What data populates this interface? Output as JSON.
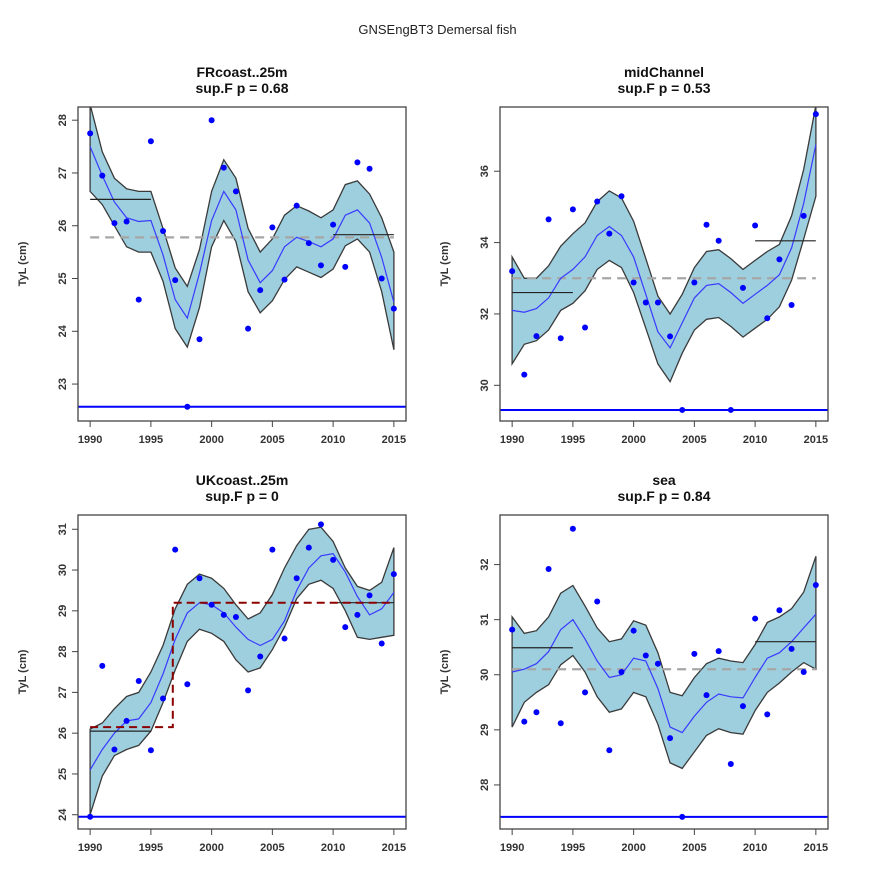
{
  "figure": {
    "suptitle": "GNSEngBT3 Demersal fish"
  },
  "colors": {
    "band_fill": "#9ecfdf",
    "band_edge": "#3a3a3a",
    "fit_line": "#3a3aff",
    "points": "#0000ff",
    "min_line": "#0000ff",
    "overall_mean": "#a6a6a6",
    "segment_mean": "#222222",
    "breakpoint_fit": "#8b0000"
  },
  "chart_data": [
    {
      "type": "scatter",
      "id": "frcoast",
      "title": "FRcoast..25m",
      "subtitle": "sup.F p = 0.68",
      "xlabel": "",
      "ylabel": "TyL (cm)",
      "xlim": [
        1989,
        2016
      ],
      "ylim": [
        22.3,
        28.25
      ],
      "xticks": [
        1990,
        1995,
        2000,
        2005,
        2010,
        2015
      ],
      "yticks": [
        23,
        24,
        25,
        26,
        27,
        28
      ],
      "x": [
        1990,
        1991,
        1992,
        1993,
        1994,
        1995,
        1996,
        1997,
        1998,
        1999,
        2000,
        2001,
        2002,
        2003,
        2004,
        2005,
        2006,
        2007,
        2008,
        2009,
        2010,
        2011,
        2012,
        2013,
        2014,
        2015
      ],
      "points": [
        27.75,
        26.95,
        26.05,
        26.08,
        24.6,
        27.6,
        25.9,
        24.97,
        22.57,
        23.85,
        28.0,
        27.1,
        26.65,
        24.05,
        24.78,
        25.97,
        24.98,
        26.38,
        25.67,
        25.25,
        26.02,
        25.22,
        27.2,
        27.08,
        25.0,
        24.43
      ],
      "fit": [
        27.5,
        26.95,
        26.45,
        26.15,
        26.08,
        26.1,
        25.45,
        24.6,
        24.25,
        25.1,
        26.1,
        26.65,
        26.3,
        25.35,
        24.92,
        25.15,
        25.6,
        25.78,
        25.7,
        25.6,
        25.75,
        26.2,
        26.3,
        26.05,
        25.4,
        24.55
      ],
      "upper": [
        28.3,
        27.4,
        26.9,
        26.7,
        26.65,
        26.65,
        25.95,
        25.2,
        24.85,
        25.55,
        26.65,
        27.25,
        26.9,
        25.95,
        25.5,
        25.75,
        26.2,
        26.38,
        26.28,
        26.15,
        26.3,
        26.78,
        26.85,
        26.6,
        26.15,
        25.5
      ],
      "lower": [
        26.65,
        26.4,
        26.0,
        25.6,
        25.5,
        25.5,
        24.95,
        24.05,
        23.7,
        24.45,
        25.6,
        26.1,
        25.7,
        24.75,
        24.35,
        24.58,
        24.98,
        25.22,
        25.12,
        25.02,
        25.18,
        25.62,
        25.75,
        25.5,
        24.75,
        23.65
      ],
      "overall_mean": 25.78,
      "min_value": 22.57,
      "segment_means": [
        {
          "from": 1990,
          "to": 1995,
          "value": 26.5
        },
        {
          "from": 2010,
          "to": 2015,
          "value": 25.83
        }
      ],
      "breakpoint_fit": []
    },
    {
      "type": "scatter",
      "id": "midchannel",
      "title": "midChannel",
      "subtitle": "sup.F p = 0.53",
      "xlabel": "",
      "ylabel": "TyL (cm)",
      "xlim": [
        1989,
        2016
      ],
      "ylim": [
        29.0,
        37.8
      ],
      "xticks": [
        1990,
        1995,
        2000,
        2005,
        2010,
        2015
      ],
      "yticks": [
        30,
        32,
        34,
        36
      ],
      "x": [
        1990,
        1991,
        1992,
        1993,
        1994,
        1995,
        1996,
        1997,
        1998,
        1999,
        2000,
        2001,
        2002,
        2003,
        2004,
        2005,
        2006,
        2007,
        2008,
        2009,
        2010,
        2011,
        2012,
        2013,
        2014,
        2015
      ],
      "points": [
        33.2,
        30.3,
        31.38,
        34.65,
        31.32,
        34.93,
        31.62,
        35.15,
        34.25,
        35.3,
        32.88,
        32.32,
        32.32,
        31.37,
        29.31,
        32.88,
        34.5,
        34.05,
        29.31,
        32.73,
        34.48,
        31.88,
        33.53,
        32.25,
        34.75,
        37.6
      ],
      "fit": [
        32.1,
        32.05,
        32.15,
        32.45,
        33.0,
        33.25,
        33.6,
        34.2,
        34.45,
        34.2,
        33.6,
        32.55,
        31.5,
        31.05,
        31.75,
        32.45,
        32.8,
        32.85,
        32.6,
        32.3,
        32.55,
        32.8,
        33.1,
        33.85,
        35.1,
        36.75
      ],
      "upper": [
        33.6,
        33.0,
        33.0,
        33.35,
        33.9,
        34.25,
        34.55,
        35.15,
        35.45,
        35.25,
        34.6,
        33.55,
        32.5,
        32.0,
        32.55,
        33.3,
        33.75,
        33.8,
        33.55,
        33.25,
        33.5,
        33.75,
        33.95,
        34.75,
        36.05,
        37.85
      ],
      "lower": [
        30.6,
        31.15,
        31.25,
        31.55,
        32.1,
        32.3,
        32.65,
        33.25,
        33.5,
        33.3,
        32.6,
        31.6,
        30.6,
        30.1,
        30.9,
        31.55,
        31.85,
        31.9,
        31.65,
        31.35,
        31.6,
        31.85,
        32.2,
        32.95,
        34.1,
        35.3
      ],
      "overall_mean": 33.0,
      "min_value": 29.31,
      "segment_means": [
        {
          "from": 1990,
          "to": 1995,
          "value": 32.6
        },
        {
          "from": 2010,
          "to": 2015,
          "value": 34.05
        }
      ],
      "breakpoint_fit": []
    },
    {
      "type": "scatter",
      "id": "ukcoast",
      "title": "UKcoast..25m",
      "subtitle": "sup.F p = 0",
      "xlabel": "",
      "ylabel": "TyL (cm)",
      "xlim": [
        1989,
        2016
      ],
      "ylim": [
        23.65,
        31.35
      ],
      "xticks": [
        1990,
        1995,
        2000,
        2005,
        2010,
        2015
      ],
      "yticks": [
        24,
        25,
        26,
        27,
        28,
        29,
        30,
        31
      ],
      "x": [
        1990,
        1991,
        1992,
        1993,
        1994,
        1995,
        1996,
        1997,
        1998,
        1999,
        2000,
        2001,
        2002,
        2003,
        2004,
        2005,
        2006,
        2007,
        2008,
        2009,
        2010,
        2011,
        2012,
        2013,
        2014,
        2015
      ],
      "points": [
        23.95,
        27.65,
        25.6,
        26.3,
        27.28,
        25.58,
        26.85,
        30.5,
        27.2,
        29.8,
        29.15,
        28.9,
        28.85,
        27.05,
        27.88,
        30.5,
        28.32,
        29.8,
        30.55,
        31.12,
        30.25,
        28.6,
        28.9,
        29.38,
        28.2,
        29.9
      ],
      "fit": [
        25.1,
        25.6,
        26.0,
        26.3,
        26.35,
        26.75,
        27.45,
        28.3,
        28.95,
        29.2,
        29.15,
        28.95,
        28.6,
        28.3,
        28.15,
        28.3,
        28.75,
        29.5,
        30.05,
        30.35,
        30.4,
        29.95,
        29.35,
        28.9,
        29.05,
        29.45
      ],
      "upper": [
        26.1,
        26.25,
        26.6,
        26.9,
        27.0,
        27.5,
        28.15,
        29.05,
        29.65,
        29.9,
        29.8,
        29.55,
        29.15,
        28.8,
        28.95,
        29.4,
        30.05,
        30.6,
        31.0,
        31.05,
        30.7,
        30.05,
        29.6,
        29.5,
        29.7,
        30.55
      ],
      "lower": [
        24.0,
        24.95,
        25.45,
        25.6,
        25.7,
        26.05,
        26.75,
        27.55,
        28.25,
        28.55,
        28.45,
        28.25,
        27.8,
        27.5,
        27.6,
        28.05,
        28.6,
        29.3,
        29.65,
        29.75,
        29.55,
        29.0,
        28.35,
        28.3,
        28.35,
        28.4
      ],
      "overall_mean": null,
      "min_value": 23.95,
      "segment_means": [
        {
          "from": 1990,
          "to": 1995,
          "value": 26.05
        },
        {
          "from": 2010,
          "to": 2015,
          "value": 29.2
        }
      ],
      "breakpoint_fit": [
        {
          "x": 1990,
          "y": 26.15
        },
        {
          "x": 1996.8,
          "y": 26.15
        },
        {
          "x": 1996.8,
          "y": 29.2
        },
        {
          "x": 2015,
          "y": 29.2
        }
      ]
    },
    {
      "type": "scatter",
      "id": "sea",
      "title": "sea",
      "subtitle": "sup.F p = 0.84",
      "xlabel": "",
      "ylabel": "TyL (cm)",
      "xlim": [
        1989,
        2016
      ],
      "ylim": [
        27.2,
        32.9
      ],
      "xticks": [
        1990,
        1995,
        2000,
        2005,
        2010,
        2015
      ],
      "yticks": [
        28,
        29,
        30,
        31,
        32
      ],
      "x": [
        1990,
        1991,
        1992,
        1993,
        1994,
        1995,
        1996,
        1997,
        1998,
        1999,
        2000,
        2001,
        2002,
        2003,
        2004,
        2005,
        2006,
        2007,
        2008,
        2009,
        2010,
        2011,
        2012,
        2013,
        2014,
        2015
      ],
      "points": [
        30.82,
        29.15,
        29.32,
        31.92,
        29.12,
        32.65,
        29.68,
        31.33,
        28.63,
        30.05,
        30.8,
        30.35,
        30.2,
        28.85,
        27.42,
        30.38,
        29.63,
        30.43,
        28.38,
        29.43,
        31.02,
        29.28,
        31.17,
        30.47,
        30.05,
        31.63
      ],
      "fit": [
        30.05,
        30.1,
        30.2,
        30.42,
        30.82,
        31.0,
        30.65,
        30.25,
        29.95,
        30.0,
        30.3,
        30.25,
        29.75,
        29.05,
        28.95,
        29.25,
        29.5,
        29.65,
        29.6,
        29.58,
        29.95,
        30.3,
        30.4,
        30.6,
        30.85,
        31.1
      ],
      "upper": [
        31.05,
        30.75,
        30.8,
        31.05,
        31.48,
        31.62,
        31.25,
        30.85,
        30.6,
        30.65,
        30.98,
        30.9,
        30.4,
        29.68,
        29.62,
        29.95,
        30.2,
        30.3,
        30.25,
        30.22,
        30.55,
        30.95,
        31.05,
        31.2,
        31.5,
        32.15
      ],
      "lower": [
        29.05,
        29.5,
        29.68,
        29.82,
        30.18,
        30.35,
        30.05,
        29.6,
        29.32,
        29.38,
        29.68,
        29.6,
        29.1,
        28.4,
        28.3,
        28.6,
        28.9,
        29.02,
        28.95,
        28.92,
        29.35,
        29.68,
        29.85,
        30.05,
        30.22,
        30.1
      ],
      "overall_mean": 30.1,
      "min_value": 27.42,
      "segment_means": [
        {
          "from": 1990,
          "to": 1995,
          "value": 30.49
        },
        {
          "from": 2010,
          "to": 2015,
          "value": 30.6
        }
      ],
      "breakpoint_fit": []
    }
  ]
}
